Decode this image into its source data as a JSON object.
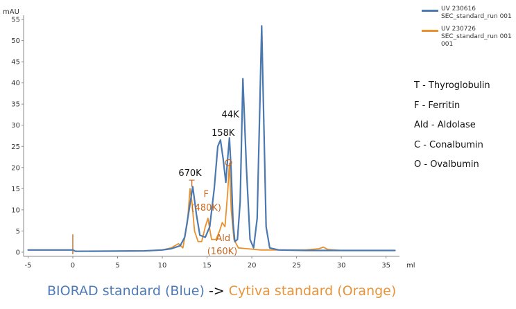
{
  "colors": {
    "blue": "#4a78b0",
    "orange": "#e8912d",
    "axis": "#888888",
    "orange_text": "#c8671f"
  },
  "legend": [
    {
      "label": "UV 230616 SEC_standard_run 001",
      "color": "#4a78b0"
    },
    {
      "label": "UV 230726 SEC_standard_run 001 001",
      "color": "#e8912d"
    }
  ],
  "key": [
    "T - Thyroglobulin",
    "F - Ferritin",
    "Ald - Aldolase",
    "C - Conalbumin",
    "O - Ovalbumin"
  ],
  "caption": {
    "blue": "BIORAD standard (Blue)",
    "arrow": "->",
    "orange": "Cytiva standard (Orange)"
  },
  "chart_data": {
    "type": "line",
    "xlabel": "ml",
    "ylabel": "mAU",
    "xlim": [
      -5.5,
      36.5
    ],
    "ylim": [
      -1,
      56
    ],
    "xticks": [
      -5,
      0,
      5,
      10,
      15,
      20,
      25,
      30,
      35
    ],
    "yticks": [
      0,
      5,
      10,
      15,
      20,
      25,
      30,
      35,
      40,
      45,
      50,
      55
    ],
    "series": [
      {
        "name": "UV 230616 SEC_standard_run 001",
        "color": "#4a78b0",
        "x": [
          -5,
          0,
          0.3,
          8,
          10,
          11,
          12,
          12.5,
          13.0,
          13.4,
          13.8,
          14.2,
          14.8,
          15.3,
          15.8,
          16.2,
          16.5,
          16.8,
          17.1,
          17.3,
          17.5,
          17.7,
          17.9,
          18.1,
          18.4,
          18.7,
          19.0,
          19.4,
          19.8,
          20.2,
          20.6,
          20.9,
          21.1,
          21.3,
          21.6,
          22.0,
          23,
          26,
          30,
          36
        ],
        "y": [
          0.5,
          0.5,
          0.2,
          0.3,
          0.5,
          0.8,
          1.5,
          3.5,
          10,
          15.5,
          9,
          4,
          3.5,
          6,
          15,
          25,
          26.5,
          22,
          16.5,
          22,
          27,
          19,
          7,
          2.5,
          3,
          12,
          41,
          20,
          3,
          1,
          8,
          35,
          53.5,
          35,
          6,
          1,
          0.5,
          0.4,
          0.4,
          0.4
        ]
      },
      {
        "name": "UV 230726 SEC_standard_run 001 001",
        "color": "#e8912d",
        "x": [
          -5,
          0,
          0.3,
          8,
          10,
          11,
          11.8,
          12.3,
          12.8,
          13.1,
          13.3,
          13.6,
          14.0,
          14.4,
          14.8,
          15.1,
          15.5,
          16.0,
          16.4,
          16.7,
          17.0,
          17.3,
          17.5,
          17.7,
          18.0,
          18.5,
          19.5,
          21,
          23,
          26,
          27.5,
          28,
          28.5,
          30,
          36
        ],
        "y": [
          0.5,
          0.5,
          0.2,
          0.3,
          0.5,
          1.0,
          2.0,
          1.0,
          7,
          15,
          12,
          5,
          2.5,
          2.5,
          6,
          8,
          3,
          3,
          5,
          7,
          6,
          14,
          21,
          10,
          3,
          1,
          0.8,
          0.5,
          0.5,
          0.5,
          0.8,
          1.2,
          0.6,
          0.4,
          0.4
        ]
      }
    ],
    "annotations": [
      {
        "text": "670K",
        "x": 13.1,
        "y": 18.0,
        "color": "#111111"
      },
      {
        "text": "158K",
        "x": 16.8,
        "y": 27.5,
        "color": "#111111"
      },
      {
        "text": "44K",
        "x": 17.6,
        "y": 31.8,
        "color": "#111111"
      },
      {
        "text": "T",
        "x": 13.3,
        "y": 15.5,
        "color": "#c8671f"
      },
      {
        "text": "F",
        "x": 14.9,
        "y": 13.0,
        "color": "#c8671f"
      },
      {
        "text": "(480K)",
        "x": 14.9,
        "y": 9.8,
        "color": "#c8671f"
      },
      {
        "text": "O",
        "x": 17.4,
        "y": 20.5,
        "color": "#c8671f"
      },
      {
        "text": "Ald",
        "x": 16.8,
        "y": 2.6,
        "color": "#c8671f"
      },
      {
        "text": "(160K)",
        "x": 16.7,
        "y": -0.5,
        "color": "#c8671f"
      }
    ],
    "grid": false
  }
}
